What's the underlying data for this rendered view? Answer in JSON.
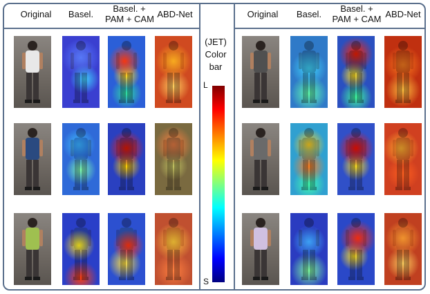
{
  "left_headers": [
    "Original",
    "Basel.",
    "Basel. +\nPAM + CAM",
    "ABD-Net"
  ],
  "right_headers": [
    "Original",
    "Basel.",
    "Basel. +\nPAM + CAM",
    "ABD-Net"
  ],
  "colorbar": {
    "title_lines": [
      "(JET)",
      "Color",
      "bar"
    ],
    "top_label": "L",
    "bottom_label": "S"
  },
  "colors": {
    "border": "#5a6f8c",
    "jet_low": "#000080",
    "jet_high": "#800000"
  }
}
